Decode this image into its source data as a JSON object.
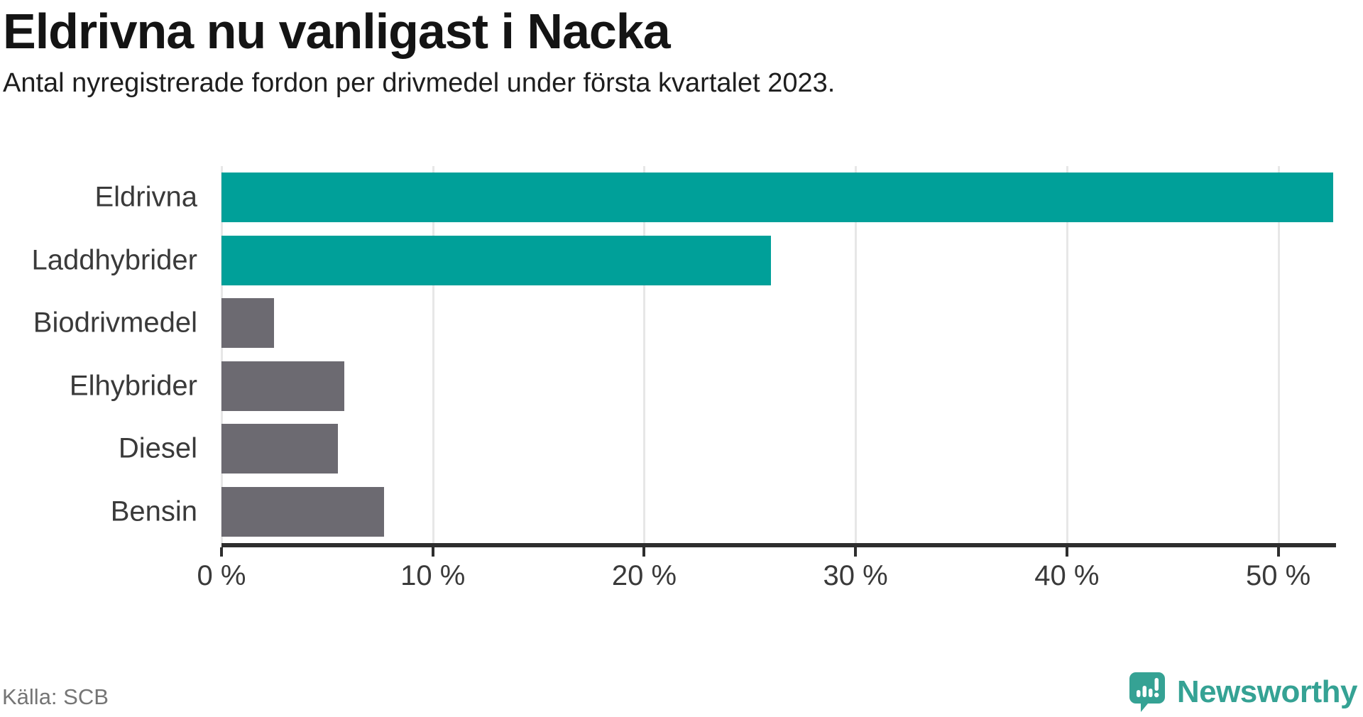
{
  "header": {
    "title": "Eldrivna nu vanligast i Nacka",
    "subtitle": "Antal nyregistrerade fordon per drivmedel under första kvartalet 2023."
  },
  "chart_data": {
    "type": "bar",
    "orientation": "horizontal",
    "title": "Eldrivna nu vanligast i Nacka",
    "subtitle": "Antal nyregistrerade fordon per drivmedel under första kvartalet 2023.",
    "categories": [
      "Eldrivna",
      "Laddhybrider",
      "Biodrivmedel",
      "Elhybrider",
      "Diesel",
      "Bensin"
    ],
    "values": [
      52.6,
      26,
      2.5,
      5.8,
      5.5,
      7.7
    ],
    "unit": "%",
    "xlim": [
      0,
      52.6
    ],
    "x_ticks": [
      0,
      10,
      20,
      30,
      40,
      50
    ],
    "x_tick_labels": [
      "0 %",
      "10 %",
      "20 %",
      "30 %",
      "40 %",
      "50 %"
    ],
    "grid": "vertical-light",
    "legend": "none",
    "bar_colors": [
      "teal",
      "teal",
      "gray",
      "gray",
      "gray",
      "gray"
    ],
    "colors": {
      "teal": "#00a099",
      "gray": "#6c6a71"
    }
  },
  "footer": {
    "source": "Källa: SCB",
    "brand": "Newsworthy",
    "brand_color": "#35a294"
  }
}
